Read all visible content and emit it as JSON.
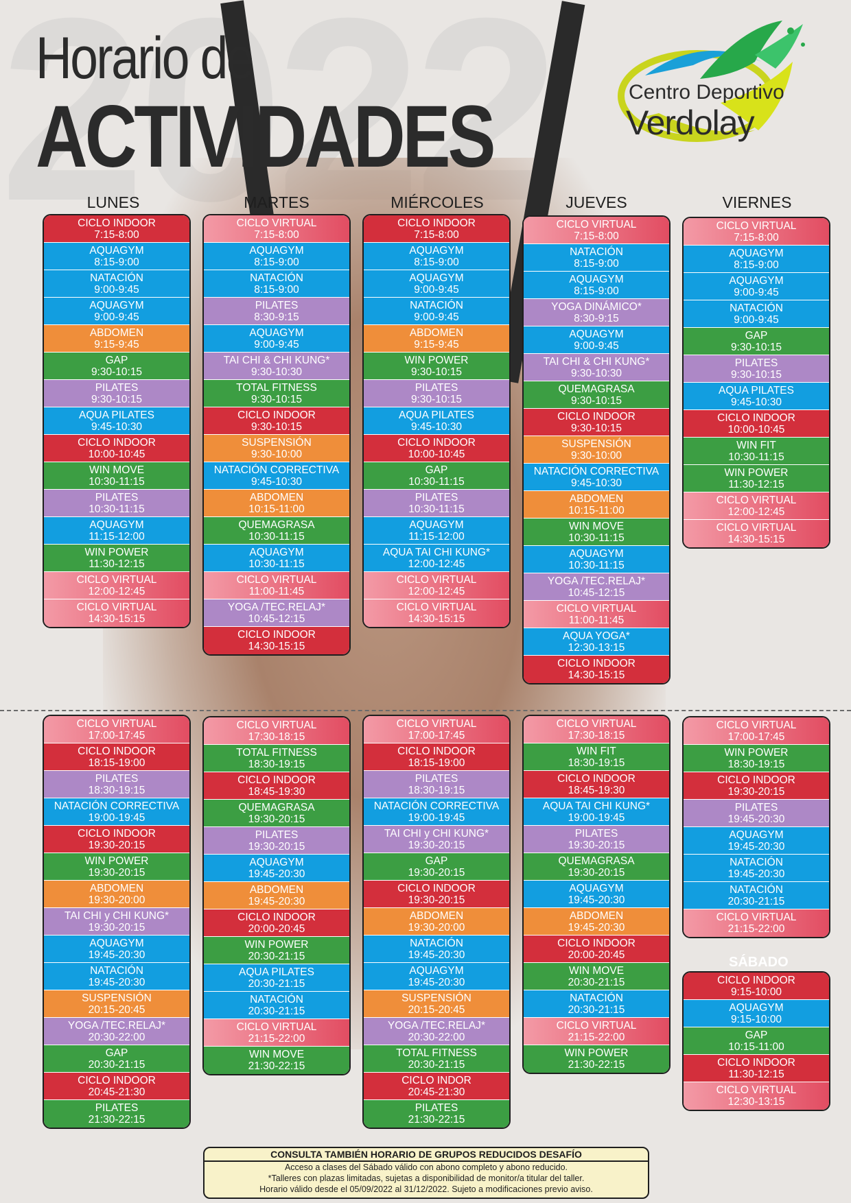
{
  "header": {
    "year": "2022",
    "title_line1": "Horario de",
    "title_line2": "ACTIVIDADES",
    "logo_line1": "Centro Deportivo",
    "logo_line2": "Verdolay"
  },
  "colors": {
    "ciclo_virtual": "#e24d62",
    "ciclo_indoor": "#d32f3c",
    "agua": "#129ee0",
    "verde": "#3c9e43",
    "naranja": "#ef8e3a",
    "morado": "#ad88c6"
  },
  "days": [
    "LUNES",
    "MARTES",
    "MIÉRCOLES",
    "JUEVES",
    "VIERNES"
  ],
  "saturday_label": "SÁBADO",
  "morning": [
    [
      {
        "n": "CICLO INDOOR",
        "t": "7:15-8:00",
        "c": "ci"
      },
      {
        "n": "AQUAGYM",
        "t": "8:15-9:00",
        "c": "aq"
      },
      {
        "n": "NATACIÓN",
        "t": "9:00-9:45",
        "c": "aq"
      },
      {
        "n": "AQUAGYM",
        "t": "9:00-9:45",
        "c": "aq"
      },
      {
        "n": "ABDOMEN",
        "t": "9:15-9:45",
        "c": "or"
      },
      {
        "n": "GAP",
        "t": "9:30-10:15",
        "c": "gr"
      },
      {
        "n": "PILATES",
        "t": "9:30-10:15",
        "c": "pu"
      },
      {
        "n": "AQUA PILATES",
        "t": "9:45-10:30",
        "c": "aq"
      },
      {
        "n": "CICLO INDOOR",
        "t": "10:00-10:45",
        "c": "ci"
      },
      {
        "n": "WIN MOVE",
        "t": "10:30-11:15",
        "c": "gr"
      },
      {
        "n": "PILATES",
        "t": "10:30-11:15",
        "c": "pu"
      },
      {
        "n": "AQUAGYM",
        "t": "11:15-12:00",
        "c": "aq"
      },
      {
        "n": "WIN POWER",
        "t": "11:30-12:15",
        "c": "gr"
      },
      {
        "n": "CICLO VIRTUAL",
        "t": "12:00-12:45",
        "c": "cv"
      },
      {
        "n": "CICLO VIRTUAL",
        "t": "14:30-15:15",
        "c": "cv"
      }
    ],
    [
      {
        "n": "CICLO VIRTUAL",
        "t": "7:15-8:00",
        "c": "cv"
      },
      {
        "n": "AQUAGYM",
        "t": "8:15-9:00",
        "c": "aq"
      },
      {
        "n": "NATACIÓN",
        "t": "8:15-9:00",
        "c": "aq"
      },
      {
        "n": "PILATES",
        "t": "8:30-9:15",
        "c": "pu"
      },
      {
        "n": "AQUAGYM",
        "t": "9:00-9:45",
        "c": "aq"
      },
      {
        "n": "TAI CHI & CHI KUNG*",
        "t": "9:30-10:30",
        "c": "pu"
      },
      {
        "n": "TOTAL FITNESS",
        "t": "9:30-10:15",
        "c": "gr"
      },
      {
        "n": "CICLO INDOOR",
        "t": "9:30-10:15",
        "c": "ci"
      },
      {
        "n": "SUSPENSIÓN",
        "t": "9:30-10:00",
        "c": "or"
      },
      {
        "n": "NATACIÓN CORRECTIVA",
        "t": "9:45-10:30",
        "c": "aq"
      },
      {
        "n": "ABDOMEN",
        "t": "10:15-11:00",
        "c": "or"
      },
      {
        "n": "QUEMAGRASA",
        "t": "10:30-11:15",
        "c": "gr"
      },
      {
        "n": "AQUAGYM",
        "t": "10:30-11:15",
        "c": "aq"
      },
      {
        "n": "CICLO VIRTUAL",
        "t": "11:00-11:45",
        "c": "cv"
      },
      {
        "n": "YOGA /TEC.RELAJ*",
        "t": "10:45-12:15",
        "c": "pu"
      },
      {
        "n": "CICLO INDOOR",
        "t": "14:30-15:15",
        "c": "ci"
      }
    ],
    [
      {
        "n": "CICLO INDOOR",
        "t": "7:15-8:00",
        "c": "ci"
      },
      {
        "n": "AQUAGYM",
        "t": "8:15-9:00",
        "c": "aq"
      },
      {
        "n": "AQUAGYM",
        "t": "9:00-9:45",
        "c": "aq"
      },
      {
        "n": "NATACIÓN",
        "t": "9:00-9:45",
        "c": "aq"
      },
      {
        "n": "ABDOMEN",
        "t": "9:15-9:45",
        "c": "or"
      },
      {
        "n": "WIN POWER",
        "t": "9:30-10:15",
        "c": "gr"
      },
      {
        "n": "PILATES",
        "t": "9:30-10:15",
        "c": "pu"
      },
      {
        "n": "AQUA PILATES",
        "t": "9:45-10:30",
        "c": "aq"
      },
      {
        "n": "CICLO INDOOR",
        "t": "10:00-10:45",
        "c": "ci"
      },
      {
        "n": "GAP",
        "t": "10:30-11:15",
        "c": "gr"
      },
      {
        "n": "PILATES",
        "t": "10:30-11:15",
        "c": "pu"
      },
      {
        "n": "AQUAGYM",
        "t": "11:15-12:00",
        "c": "aq"
      },
      {
        "n": "AQUA TAI CHI KUNG*",
        "t": "12:00-12:45",
        "c": "aq"
      },
      {
        "n": "CICLO VIRTUAL",
        "t": "12:00-12:45",
        "c": "cv"
      },
      {
        "n": "CICLO VIRTUAL",
        "t": "14:30-15:15",
        "c": "cv"
      }
    ],
    [
      {
        "n": "CICLO VIRTUAL",
        "t": "7:15-8:00",
        "c": "cv"
      },
      {
        "n": "NATACIÓN",
        "t": "8:15-9:00",
        "c": "aq"
      },
      {
        "n": "AQUAGYM",
        "t": "8:15-9:00",
        "c": "aq"
      },
      {
        "n": "YOGA DINÁMICO*",
        "t": "8:30-9:15",
        "c": "pu"
      },
      {
        "n": "AQUAGYM",
        "t": "9:00-9:45",
        "c": "aq"
      },
      {
        "n": "TAI CHI & CHI KUNG*",
        "t": "9:30-10:30",
        "c": "pu"
      },
      {
        "n": "QUEMAGRASA",
        "t": "9:30-10:15",
        "c": "gr"
      },
      {
        "n": "CICLO INDOOR",
        "t": "9:30-10:15",
        "c": "ci"
      },
      {
        "n": "SUSPENSIÓN",
        "t": "9:30-10:00",
        "c": "or"
      },
      {
        "n": "NATACIÓN CORRECTIVA",
        "t": "9:45-10:30",
        "c": "aq"
      },
      {
        "n": "ABDOMEN",
        "t": "10:15-11:00",
        "c": "or"
      },
      {
        "n": "WIN MOVE",
        "t": "10:30-11:15",
        "c": "gr"
      },
      {
        "n": "AQUAGYM",
        "t": "10:30-11:15",
        "c": "aq"
      },
      {
        "n": "YOGA /TEC.RELAJ*",
        "t": "10:45-12:15",
        "c": "pu"
      },
      {
        "n": "CICLO VIRTUAL",
        "t": "11:00-11:45",
        "c": "cv"
      },
      {
        "n": "AQUA YOGA*",
        "t": "12:30-13:15",
        "c": "aq"
      },
      {
        "n": "CICLO INDOOR",
        "t": "14:30-15:15",
        "c": "ci"
      }
    ],
    [
      {
        "n": "CICLO VIRTUAL",
        "t": "7:15-8:00",
        "c": "cv"
      },
      {
        "n": "AQUAGYM",
        "t": "8:15-9:00",
        "c": "aq"
      },
      {
        "n": "AQUAGYM",
        "t": "9:00-9:45",
        "c": "aq"
      },
      {
        "n": "NATACIÓN",
        "t": "9:00-9:45",
        "c": "aq"
      },
      {
        "n": "GAP",
        "t": "9:30-10:15",
        "c": "gr"
      },
      {
        "n": "PILATES",
        "t": "9:30-10:15",
        "c": "pu"
      },
      {
        "n": "AQUA PILATES",
        "t": "9:45-10:30",
        "c": "aq"
      },
      {
        "n": "CICLO INDOOR",
        "t": "10:00-10:45",
        "c": "ci"
      },
      {
        "n": "WIN FIT",
        "t": "10:30-11:15",
        "c": "gr"
      },
      {
        "n": "WIN POWER",
        "t": "11:30-12:15",
        "c": "gr"
      },
      {
        "n": "CICLO VIRTUAL",
        "t": "12:00-12:45",
        "c": "cv"
      },
      {
        "n": "CICLO VIRTUAL",
        "t": "14:30-15:15",
        "c": "cv"
      }
    ]
  ],
  "evening": [
    [
      {
        "n": "CICLO VIRTUAL",
        "t": "17:00-17:45",
        "c": "cv"
      },
      {
        "n": "CICLO INDOOR",
        "t": "18:15-19:00",
        "c": "ci"
      },
      {
        "n": "PILATES",
        "t": "18:30-19:15",
        "c": "pu"
      },
      {
        "n": "NATACIÓN CORRECTIVA",
        "t": "19:00-19:45",
        "c": "aq"
      },
      {
        "n": "CICLO INDOOR",
        "t": "19:30-20:15",
        "c": "ci"
      },
      {
        "n": "WIN POWER",
        "t": "19:30-20:15",
        "c": "gr"
      },
      {
        "n": "ABDOMEN",
        "t": "19:30-20:00",
        "c": "or"
      },
      {
        "n": "TAI CHI y CHI KUNG*",
        "t": "19:30-20:15",
        "c": "pu"
      },
      {
        "n": "AQUAGYM",
        "t": "19:45-20:30",
        "c": "aq"
      },
      {
        "n": "NATACIÓN",
        "t": "19:45-20:30",
        "c": "aq"
      },
      {
        "n": "SUSPENSIÓN",
        "t": "20:15-20:45",
        "c": "or"
      },
      {
        "n": "YOGA /TEC.RELAJ*",
        "t": "20:30-22:00",
        "c": "pu"
      },
      {
        "n": "GAP",
        "t": "20:30-21:15",
        "c": "gr"
      },
      {
        "n": "CICLO INDOOR",
        "t": "20:45-21:30",
        "c": "ci"
      },
      {
        "n": "PILATES",
        "t": "21:30-22:15",
        "c": "gr"
      }
    ],
    [
      {
        "n": "CICLO VIRTUAL",
        "t": "17:30-18:15",
        "c": "cv"
      },
      {
        "n": "TOTAL FITNESS",
        "t": "18:30-19:15",
        "c": "gr"
      },
      {
        "n": "CICLO INDOOR",
        "t": "18:45-19:30",
        "c": "ci"
      },
      {
        "n": "QUEMAGRASA",
        "t": "19:30-20:15",
        "c": "gr"
      },
      {
        "n": "PILATES",
        "t": "19:30-20:15",
        "c": "pu"
      },
      {
        "n": "AQUAGYM",
        "t": "19:45-20:30",
        "c": "aq"
      },
      {
        "n": "ABDOMEN",
        "t": "19:45-20:30",
        "c": "or"
      },
      {
        "n": "CICLO INDOOR",
        "t": "20:00-20:45",
        "c": "ci"
      },
      {
        "n": "WIN POWER",
        "t": "20:30-21:15",
        "c": "gr"
      },
      {
        "n": "AQUA PILATES",
        "t": "20:30-21:15",
        "c": "aq"
      },
      {
        "n": "NATACIÓN",
        "t": "20:30-21:15",
        "c": "aq"
      },
      {
        "n": "CICLO VIRTUAL",
        "t": "21:15-22:00",
        "c": "cv"
      },
      {
        "n": "WIN MOVE",
        "t": "21:30-22:15",
        "c": "gr"
      }
    ],
    [
      {
        "n": "CICLO VIRTUAL",
        "t": "17:00-17:45",
        "c": "cv"
      },
      {
        "n": "CICLO INDOOR",
        "t": "18:15-19:00",
        "c": "ci"
      },
      {
        "n": "PILATES",
        "t": "18:30-19:15",
        "c": "pu"
      },
      {
        "n": "NATACIÓN CORRECTIVA",
        "t": "19:00-19:45",
        "c": "aq"
      },
      {
        "n": "TAI CHI y CHI KUNG*",
        "t": "19:30-20:15",
        "c": "pu"
      },
      {
        "n": "GAP",
        "t": "19:30-20:15",
        "c": "gr"
      },
      {
        "n": "CICLO INDOOR",
        "t": "19:30-20:15",
        "c": "ci"
      },
      {
        "n": "ABDOMEN",
        "t": "19:30-20:00",
        "c": "or"
      },
      {
        "n": "NATACIÓN",
        "t": "19:45-20:30",
        "c": "aq"
      },
      {
        "n": "AQUAGYM",
        "t": "19:45-20:30",
        "c": "aq"
      },
      {
        "n": "SUSPENSIÓN",
        "t": "20:15-20:45",
        "c": "or"
      },
      {
        "n": "YOGA /TEC.RELAJ*",
        "t": "20:30-22:00",
        "c": "pu"
      },
      {
        "n": "TOTAL FITNESS",
        "t": "20:30-21:15",
        "c": "gr"
      },
      {
        "n": "CICLO INDOR",
        "t": "20:45-21:30",
        "c": "ci"
      },
      {
        "n": "PILATES",
        "t": "21:30-22:15",
        "c": "gr"
      }
    ],
    [
      {
        "n": "CICLO VIRTUAL",
        "t": "17:30-18:15",
        "c": "cv"
      },
      {
        "n": "WIN FIT",
        "t": "18:30-19:15",
        "c": "gr"
      },
      {
        "n": "CICLO INDOOR",
        "t": "18:45-19:30",
        "c": "ci"
      },
      {
        "n": "AQUA TAI CHI KUNG*",
        "t": "19:00-19:45",
        "c": "aq"
      },
      {
        "n": "PILATES",
        "t": "19:30-20:15",
        "c": "pu"
      },
      {
        "n": "QUEMAGRASA",
        "t": "19:30-20:15",
        "c": "gr"
      },
      {
        "n": "AQUAGYM",
        "t": "19:45-20:30",
        "c": "aq"
      },
      {
        "n": "ABDOMEN",
        "t": "19:45-20:30",
        "c": "or"
      },
      {
        "n": "CICLO INDOOR",
        "t": "20:00-20:45",
        "c": "ci"
      },
      {
        "n": "WIN MOVE",
        "t": "20:30-21:15",
        "c": "gr"
      },
      {
        "n": "NATACIÓN",
        "t": "20:30-21:15",
        "c": "aq"
      },
      {
        "n": "CICLO VIRTUAL",
        "t": "21:15-22:00",
        "c": "cv"
      },
      {
        "n": "WIN POWER",
        "t": "21:30-22:15",
        "c": "gr"
      }
    ],
    [
      {
        "n": "CICLO VIRTUAL",
        "t": "17:00-17:45",
        "c": "cv"
      },
      {
        "n": "WIN POWER",
        "t": "18:30-19:15",
        "c": "gr"
      },
      {
        "n": "CICLO INDOOR",
        "t": "19:30-20:15",
        "c": "ci"
      },
      {
        "n": "PILATES",
        "t": "19:45-20:30",
        "c": "pu"
      },
      {
        "n": "AQUAGYM",
        "t": "19:45-20:30",
        "c": "aq"
      },
      {
        "n": "NATACIÓN",
        "t": "19:45-20:30",
        "c": "aq"
      },
      {
        "n": "NATACIÓN",
        "t": "20:30-21:15",
        "c": "aq"
      },
      {
        "n": "CICLO VIRTUAL",
        "t": "21:15-22:00",
        "c": "cv"
      }
    ]
  ],
  "saturday": [
    {
      "n": "CICLO INDOOR",
      "t": "9:15-10:00",
      "c": "ci"
    },
    {
      "n": "AQUAGYM",
      "t": "9:15-10:00",
      "c": "aq"
    },
    {
      "n": "GAP",
      "t": "10:15-11:00",
      "c": "gr"
    },
    {
      "n": "CICLO INDOOR",
      "t": "11:30-12:15",
      "c": "ci"
    },
    {
      "n": "CICLO VIRTUAL",
      "t": "12:30-13:15",
      "c": "cv"
    }
  ],
  "footer": {
    "title": "CONSULTA TAMBIÉN HORARIO DE GRUPOS REDUCIDOS DESAFÍO",
    "lines": [
      "Acceso a clases del Sábado válido con abono completo y abono reducido.",
      "*Talleres con plazas limitadas, sujetas a disponibilidad de monitor/a titular del taller.",
      "Horario válido desde el 05/09/2022 al 31/12/2022. Sujeto a modificaciones previo aviso."
    ]
  }
}
